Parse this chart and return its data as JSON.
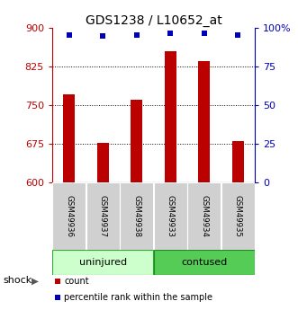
{
  "title": "GDS1238 / L10652_at",
  "categories": [
    "GSM49936",
    "GSM49937",
    "GSM49938",
    "GSM49933",
    "GSM49934",
    "GSM49935"
  ],
  "bar_values": [
    770,
    676,
    760,
    855,
    835,
    680
  ],
  "percentile_values": [
    95.5,
    94.5,
    95.5,
    96.5,
    96.5,
    95.5
  ],
  "ylim_left": [
    600,
    900
  ],
  "ylim_right": [
    0,
    100
  ],
  "yticks_left": [
    600,
    675,
    750,
    825,
    900
  ],
  "yticks_right": [
    0,
    25,
    50,
    75,
    100
  ],
  "ytick_labels_right": [
    "0",
    "25",
    "50",
    "75",
    "100%"
  ],
  "bar_color": "#bb0000",
  "dot_color": "#0000bb",
  "group1_label": "uninjured",
  "group2_label": "contused",
  "group1_color": "#ccffcc",
  "group2_color": "#55cc55",
  "shock_label": "shock",
  "legend_count": "count",
  "legend_percentile": "percentile rank within the sample",
  "title_fontsize": 10,
  "tick_fontsize": 8,
  "bar_width": 0.35
}
